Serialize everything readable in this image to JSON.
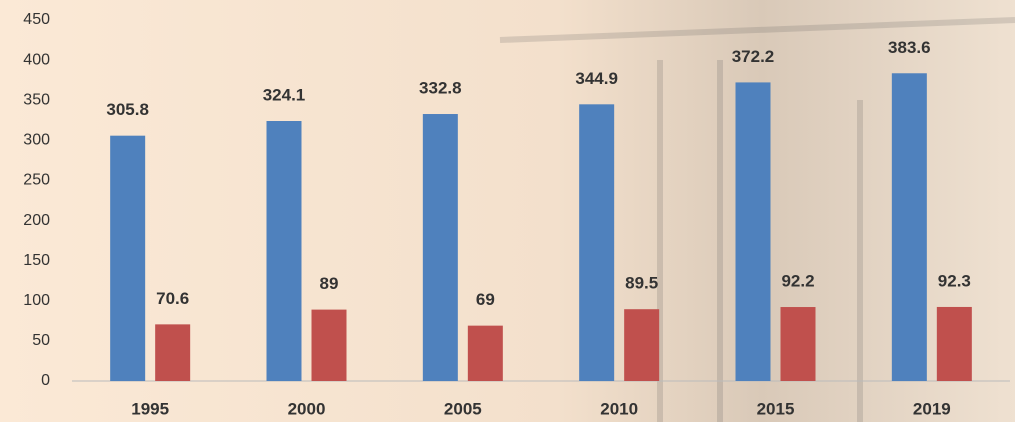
{
  "chart_data": {
    "type": "bar",
    "categories": [
      "1995",
      "2000",
      "2005",
      "2010",
      "2015",
      "2019"
    ],
    "series": [
      {
        "color": "#4f81bd",
        "values": [
          305.8,
          324.1,
          332.8,
          344.9,
          372.2,
          383.6
        ]
      },
      {
        "color": "#c0504d",
        "values": [
          70.6,
          89,
          69,
          89.5,
          92.2,
          92.3
        ]
      }
    ],
    "ylim": [
      0,
      450
    ],
    "yticks": [
      0,
      50,
      100,
      150,
      200,
      250,
      300,
      350,
      400,
      450
    ],
    "grid": false
  }
}
